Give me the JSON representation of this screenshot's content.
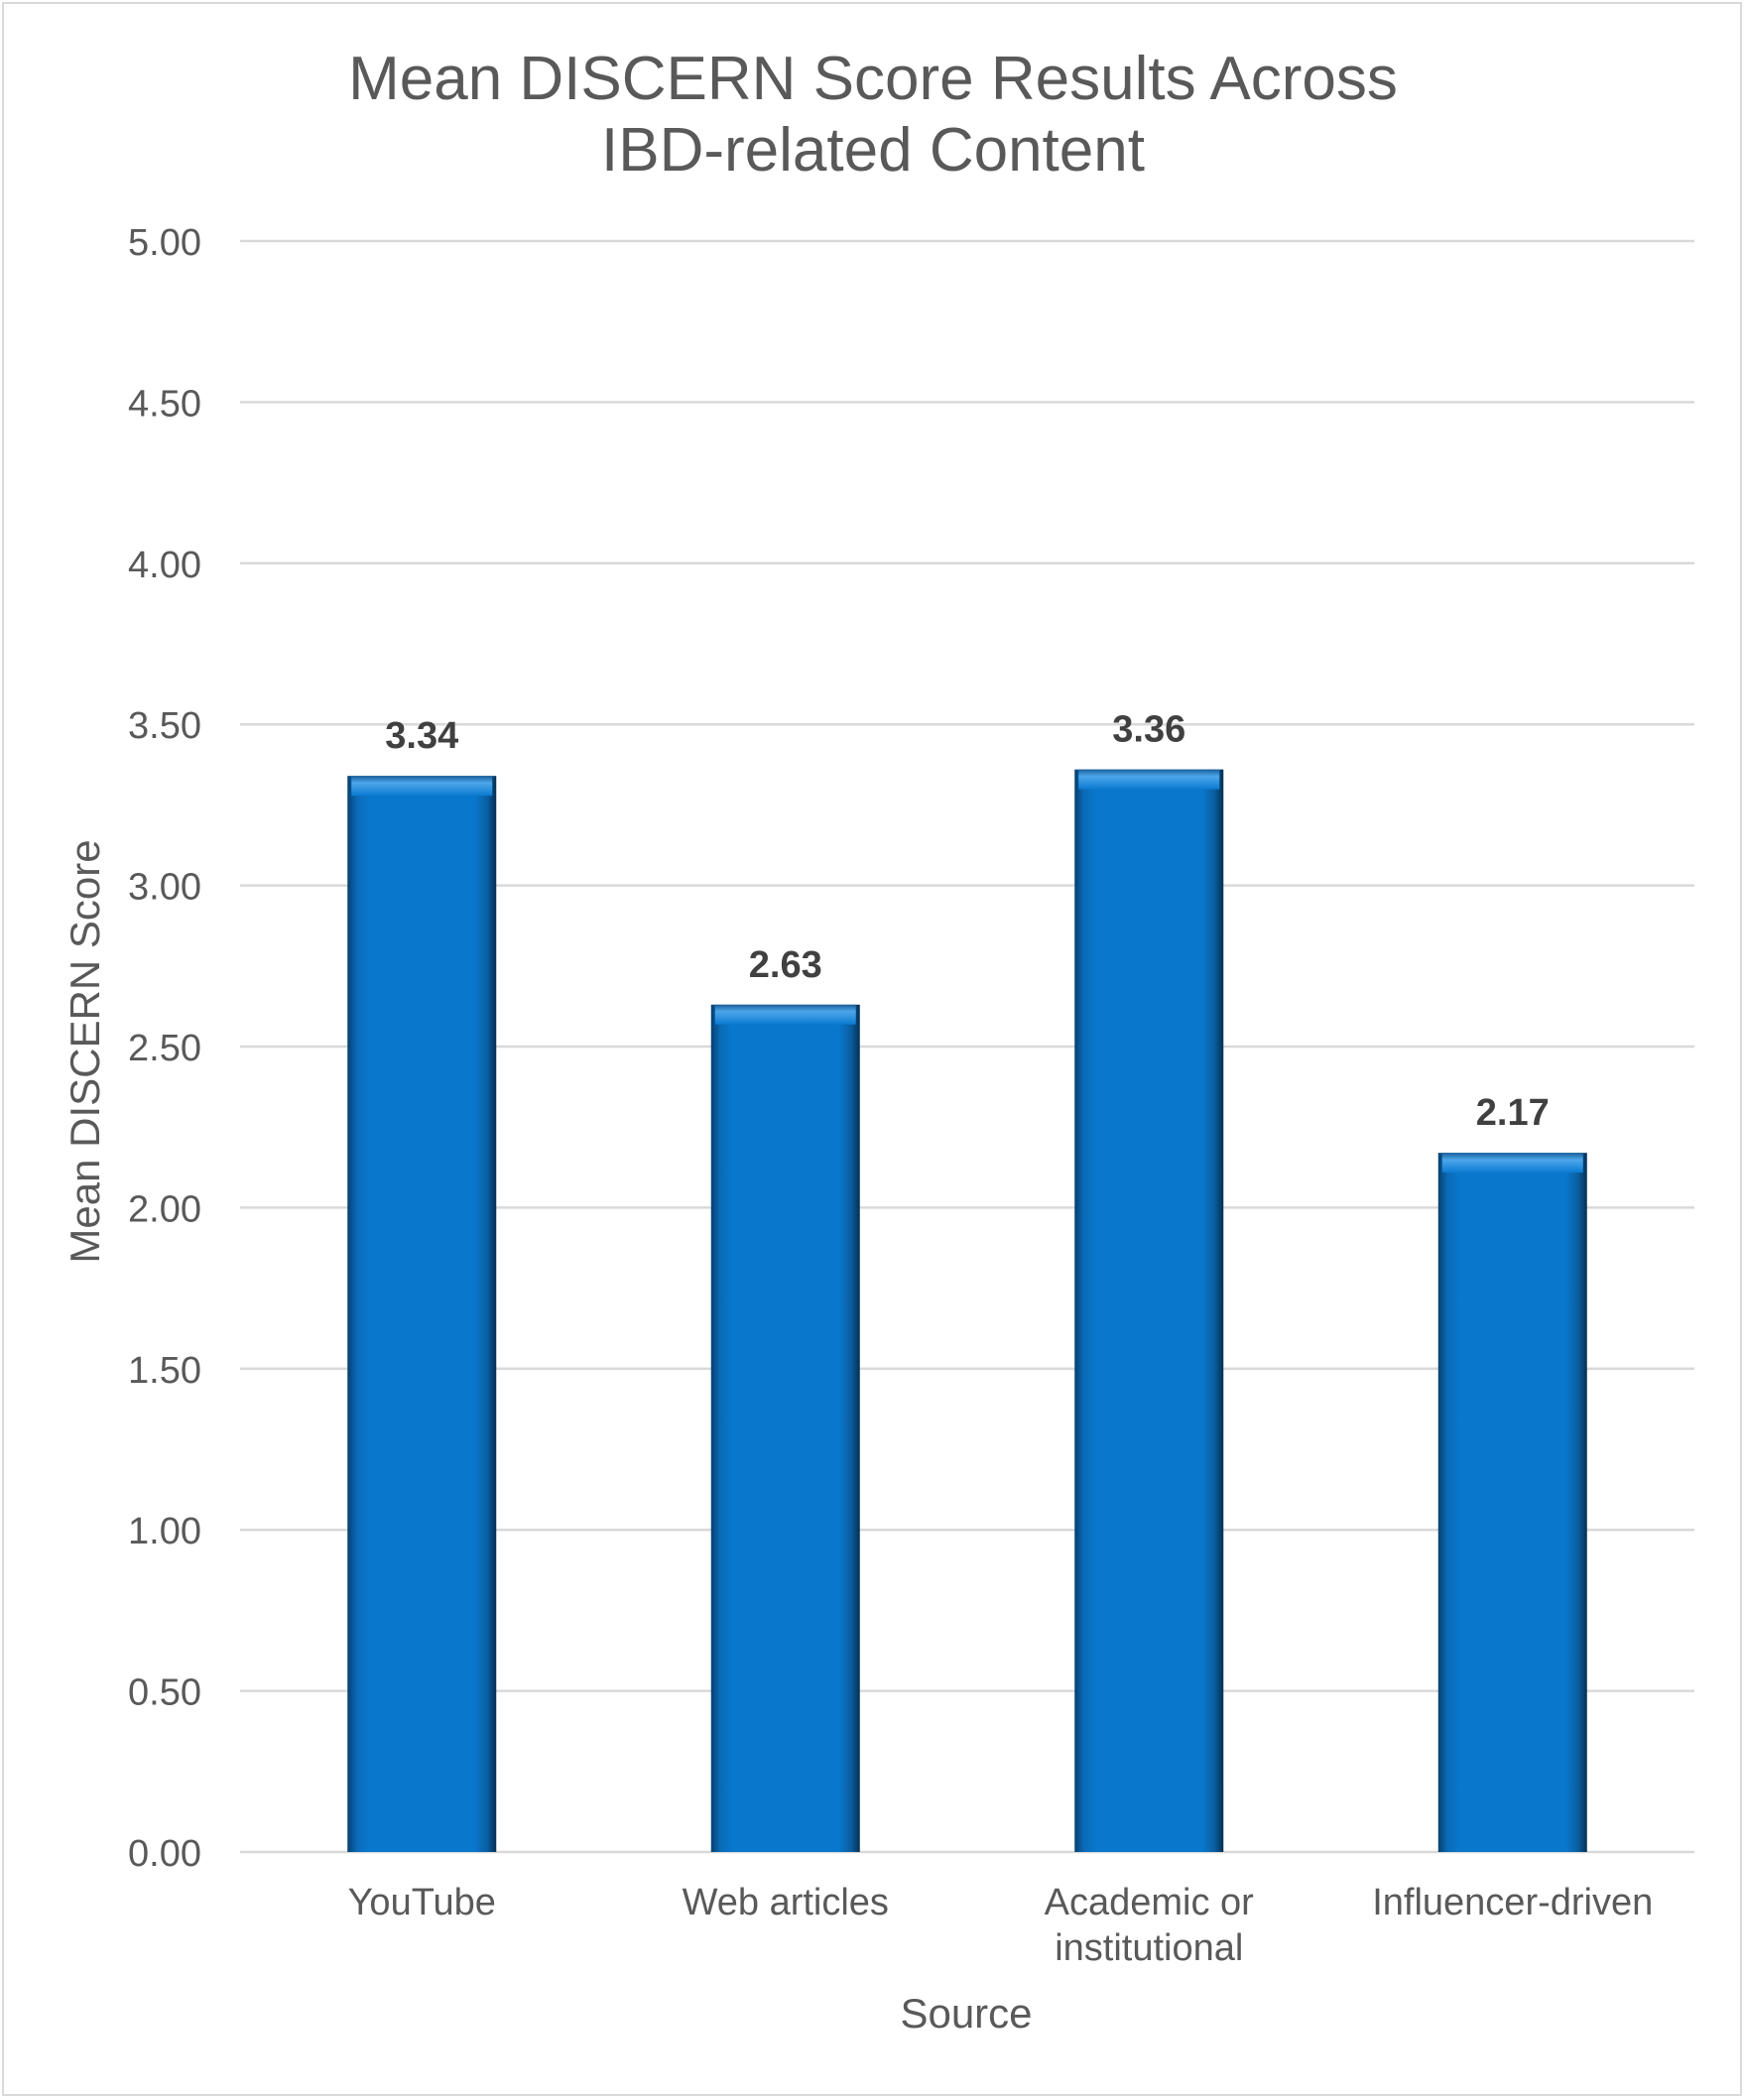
{
  "chart_data": {
    "type": "bar",
    "title_line1": "Mean DISCERN Score Results Across",
    "title_line2": "IBD-related Content",
    "xlabel": "Source",
    "ylabel": "Mean DISCERN Score",
    "categories": [
      [
        "YouTube"
      ],
      [
        "Web articles"
      ],
      [
        "Academic or",
        "institutional"
      ],
      [
        "Influencer-driven"
      ]
    ],
    "values": [
      3.34,
      2.63,
      3.36,
      2.17
    ],
    "data_labels": [
      "3.34",
      "2.63",
      "3.36",
      "2.17"
    ],
    "y_ticks": [
      "0.00",
      "0.50",
      "1.00",
      "1.50",
      "2.00",
      "2.50",
      "3.00",
      "3.50",
      "4.00",
      "4.50",
      "5.00"
    ],
    "ylim": [
      0,
      5
    ],
    "grid": true,
    "legend": "none",
    "colors": {
      "bar": "#0977CC",
      "bar_dark": "#063F6E",
      "bar_light": "#4DA6EA",
      "grid": "#d9d9d9",
      "text": "#595959"
    }
  }
}
